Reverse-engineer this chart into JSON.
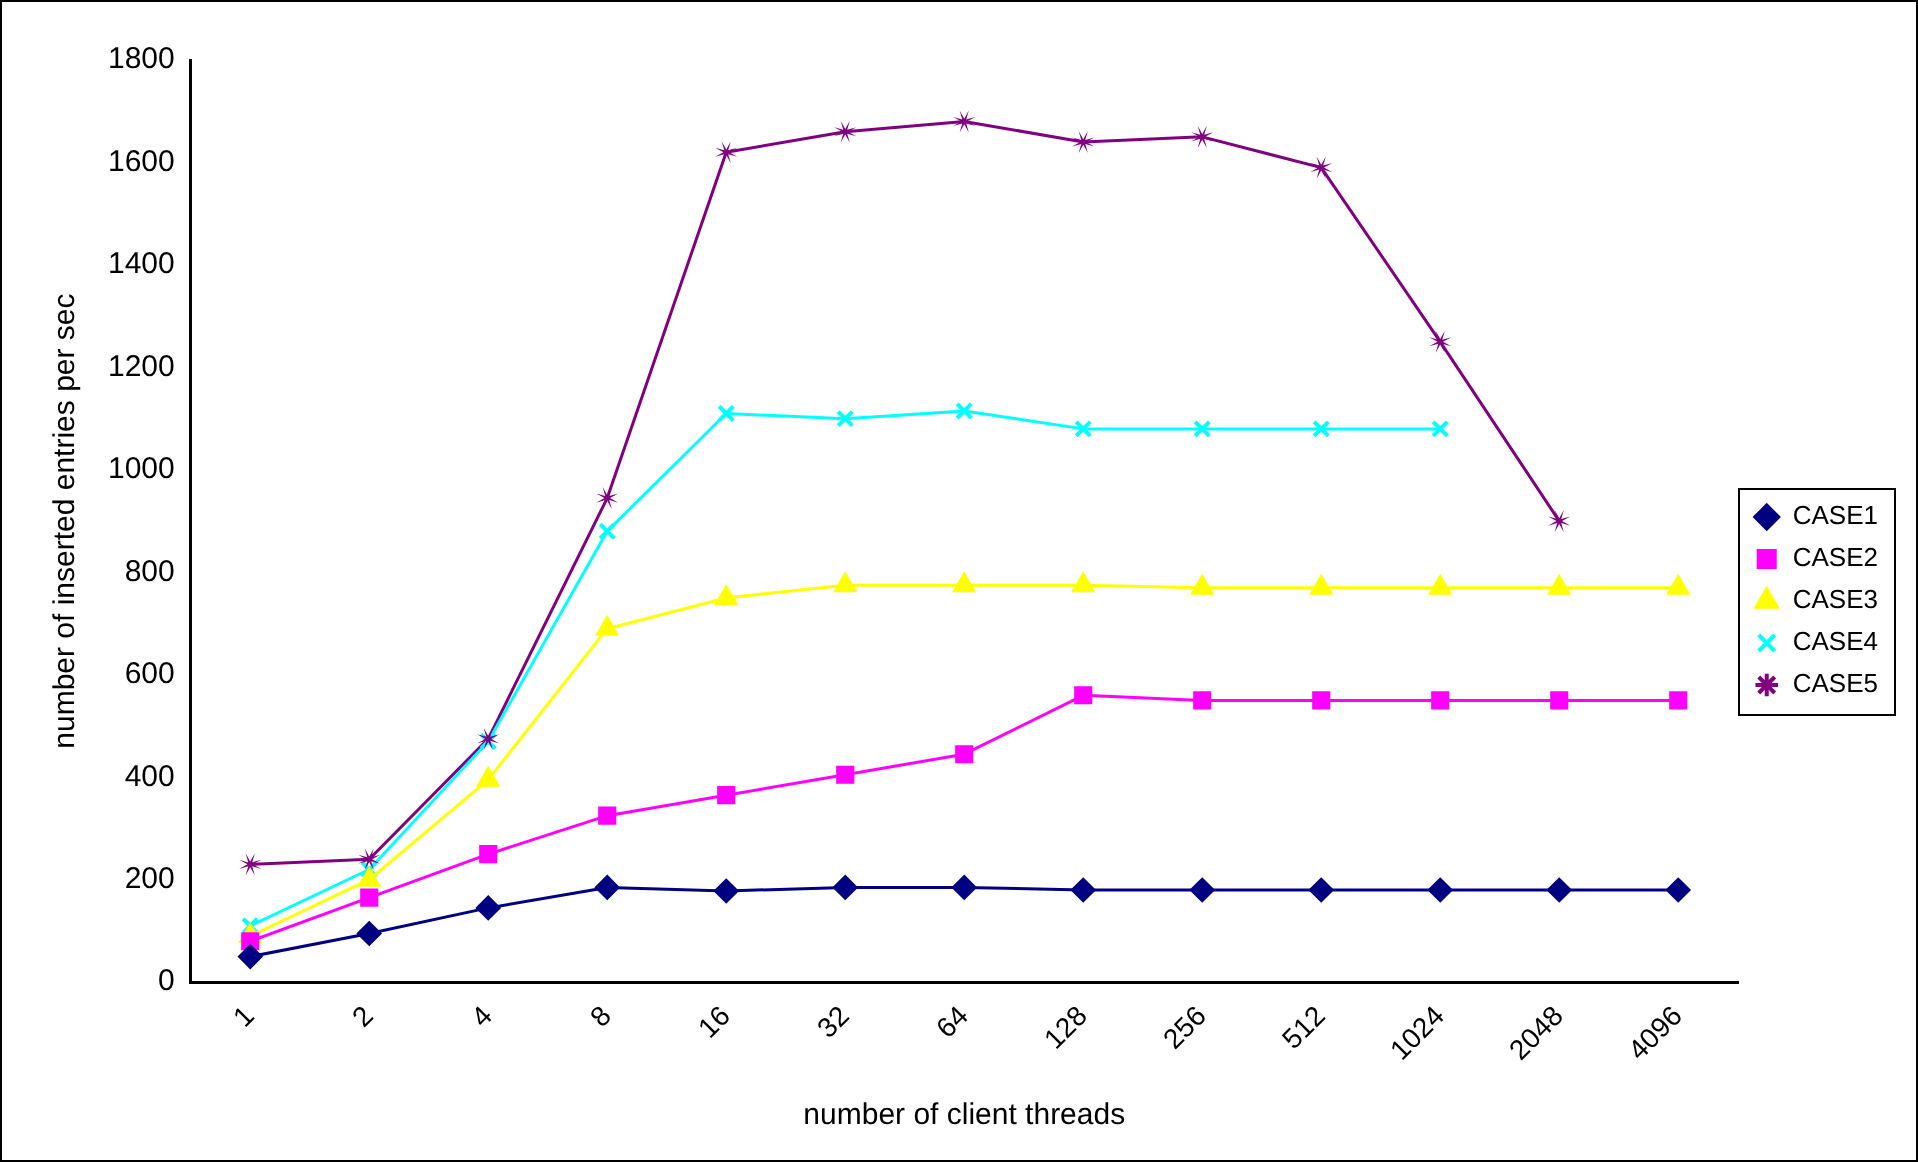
{
  "chart_data": {
    "type": "line",
    "xlabel": "number of client threads",
    "ylabel": "number of inserted entries per sec",
    "categories": [
      "1",
      "2",
      "4",
      "8",
      "16",
      "32",
      "64",
      "128",
      "256",
      "512",
      "1024",
      "2048",
      "4096"
    ],
    "ylim": [
      0,
      1800
    ],
    "yticks": [
      0,
      200,
      400,
      600,
      800,
      1000,
      1200,
      1400,
      1600,
      1800
    ],
    "grid": false,
    "legend": "right",
    "series": [
      {
        "name": "CASE1",
        "color": "#000080",
        "marker": "diamond",
        "values": [
          50,
          95,
          145,
          185,
          178,
          185,
          185,
          180,
          180,
          180,
          180,
          180,
          180
        ]
      },
      {
        "name": "CASE2",
        "color": "#ff00ff",
        "marker": "square",
        "values": [
          80,
          165,
          250,
          325,
          365,
          405,
          445,
          560,
          550,
          550,
          550,
          550,
          550
        ]
      },
      {
        "name": "CASE3",
        "color": "#ffff00",
        "marker": "triangle",
        "values": [
          90,
          200,
          395,
          690,
          750,
          775,
          775,
          775,
          770,
          770,
          770,
          770,
          770
        ]
      },
      {
        "name": "CASE4",
        "color": "#00ffff",
        "marker": "cross",
        "values": [
          110,
          220,
          470,
          880,
          1110,
          1100,
          1115,
          1080,
          1080,
          1080,
          1080,
          null,
          null
        ]
      },
      {
        "name": "CASE5",
        "color": "#800080",
        "marker": "star",
        "values": [
          230,
          240,
          475,
          945,
          1620,
          1660,
          1680,
          1640,
          1650,
          1590,
          1250,
          900,
          null
        ]
      }
    ]
  }
}
